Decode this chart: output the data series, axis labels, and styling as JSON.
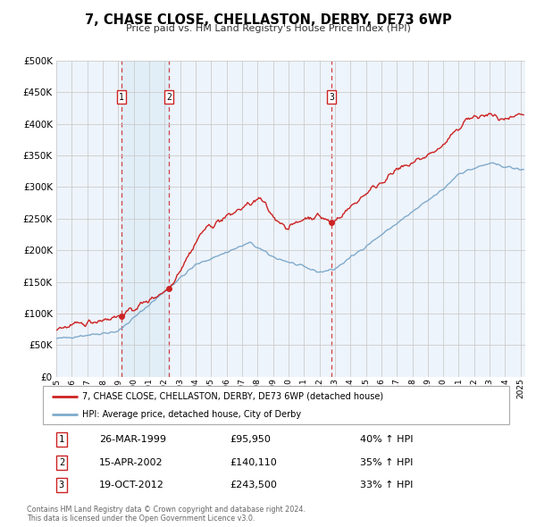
{
  "title": "7, CHASE CLOSE, CHELLASTON, DERBY, DE73 6WP",
  "subtitle": "Price paid vs. HM Land Registry's House Price Index (HPI)",
  "ylim": [
    0,
    500000
  ],
  "yticks": [
    0,
    50000,
    100000,
    150000,
    200000,
    250000,
    300000,
    350000,
    400000,
    450000,
    500000
  ],
  "ytick_labels": [
    "£0",
    "£50K",
    "£100K",
    "£150K",
    "£200K",
    "£250K",
    "£300K",
    "£350K",
    "£400K",
    "£450K",
    "£500K"
  ],
  "xlim_start": 1995.0,
  "xlim_end": 2025.3,
  "sale_color": "#cc2222",
  "hpi_color": "#7faacc",
  "hpi_fill_color": "#c8dff0",
  "grid_color": "#cccccc",
  "background_color": "#ffffff",
  "plot_bg_color": "#eef4fb",
  "sale_label": "7, CHASE CLOSE, CHELLASTON, DERBY, DE73 6WP (detached house)",
  "hpi_label": "HPI: Average price, detached house, City of Derby",
  "transactions": [
    {
      "id": 1,
      "date": "26-MAR-1999",
      "year": 1999.23,
      "price": 95950,
      "pct": "40%",
      "dir": "↑"
    },
    {
      "id": 2,
      "date": "15-APR-2002",
      "year": 2002.29,
      "price": 140110,
      "pct": "35%",
      "dir": "↑"
    },
    {
      "id": 3,
      "date": "19-OCT-2012",
      "year": 2012.8,
      "price": 243500,
      "pct": "33%",
      "dir": "↑"
    }
  ],
  "footnote1": "Contains HM Land Registry data © Crown copyright and database right 2024.",
  "footnote2": "This data is licensed under the Open Government Licence v3.0."
}
